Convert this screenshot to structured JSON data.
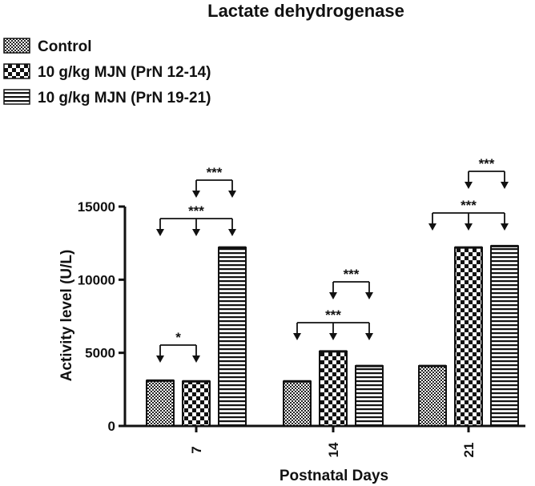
{
  "chart_data": {
    "type": "bar",
    "title": "Lactate dehydrogenase",
    "xlabel": "Postnatal Days",
    "ylabel": "Activity level (U/L)",
    "ylim": [
      0,
      15000
    ],
    "yticks": [
      0,
      5000,
      10000,
      15000
    ],
    "grid": false,
    "legend_position": "top-left",
    "categories": [
      "7",
      "14",
      "21"
    ],
    "series": [
      {
        "name": "Control",
        "pattern": "checker-fine",
        "values": [
          3100,
          3050,
          4100
        ]
      },
      {
        "name": "10 g/kg MJN (PrN 12-14)",
        "pattern": "checker-coarse",
        "values": [
          3050,
          5100,
          12200
        ]
      },
      {
        "name": "10 g/kg MJN (PrN 19-21)",
        "pattern": "horizontal-stripes",
        "values": [
          12200,
          4100,
          12300
        ]
      }
    ],
    "annotations": [
      {
        "category": "7",
        "from_series": 0,
        "to_series": 1,
        "label": "*"
      },
      {
        "category": "7",
        "from_series": 0,
        "to_series": 2,
        "label": "***",
        "via": 1
      },
      {
        "category": "7",
        "from_series": 1,
        "to_series": 2,
        "label": "***"
      },
      {
        "category": "14",
        "from_series": 0,
        "to_series": 2,
        "label": "***",
        "via": 1
      },
      {
        "category": "14",
        "from_series": 1,
        "to_series": 2,
        "label": "***"
      },
      {
        "category": "21",
        "from_series": 0,
        "to_series": 2,
        "label": "***",
        "via": 1
      },
      {
        "category": "21",
        "from_series": 1,
        "to_series": 2,
        "label": "***"
      }
    ]
  }
}
